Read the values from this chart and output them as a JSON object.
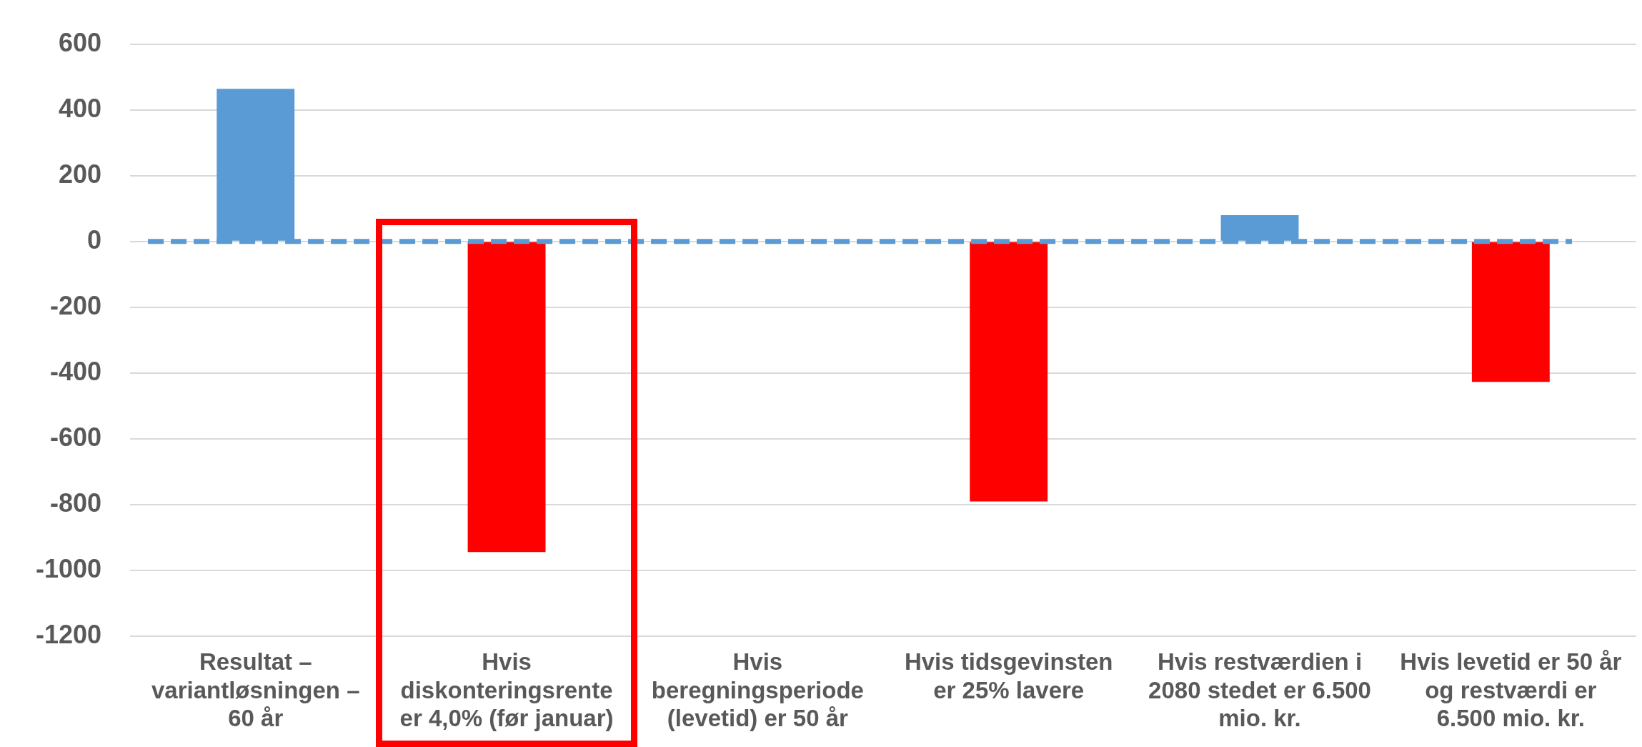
{
  "chart_data": {
    "type": "bar",
    "categories": [
      "Resultat – variantløsningen – 60 år",
      "Hvis diskonteringsrente er 4,0% (før januar)",
      "Hvis beregningsperiode (levetid) er 50 år",
      "Hvis tidsgevinsten er 25% lavere",
      "Hvis restværdien i 2080 stedet er 6.500 mio. kr.",
      "Hvis levetid er 50 år og restværdi er 6.500 mio. kr."
    ],
    "values": [
      464,
      -944,
      0,
      -790,
      80,
      -427
    ],
    "colors": [
      "#5b9bd5",
      "#ff0000",
      "#5b9bd5",
      "#ff0000",
      "#5b9bd5",
      "#ff0000"
    ],
    "ylim": [
      -1200,
      600
    ],
    "yticks": [
      -1200,
      -1000,
      -800,
      -600,
      -400,
      -200,
      0,
      200,
      400,
      600
    ],
    "grid": "y",
    "ref_lines": [
      {
        "axis": "y",
        "value": 0,
        "color": "#5b9bd5",
        "line_style": "dashed"
      }
    ]
  }
}
